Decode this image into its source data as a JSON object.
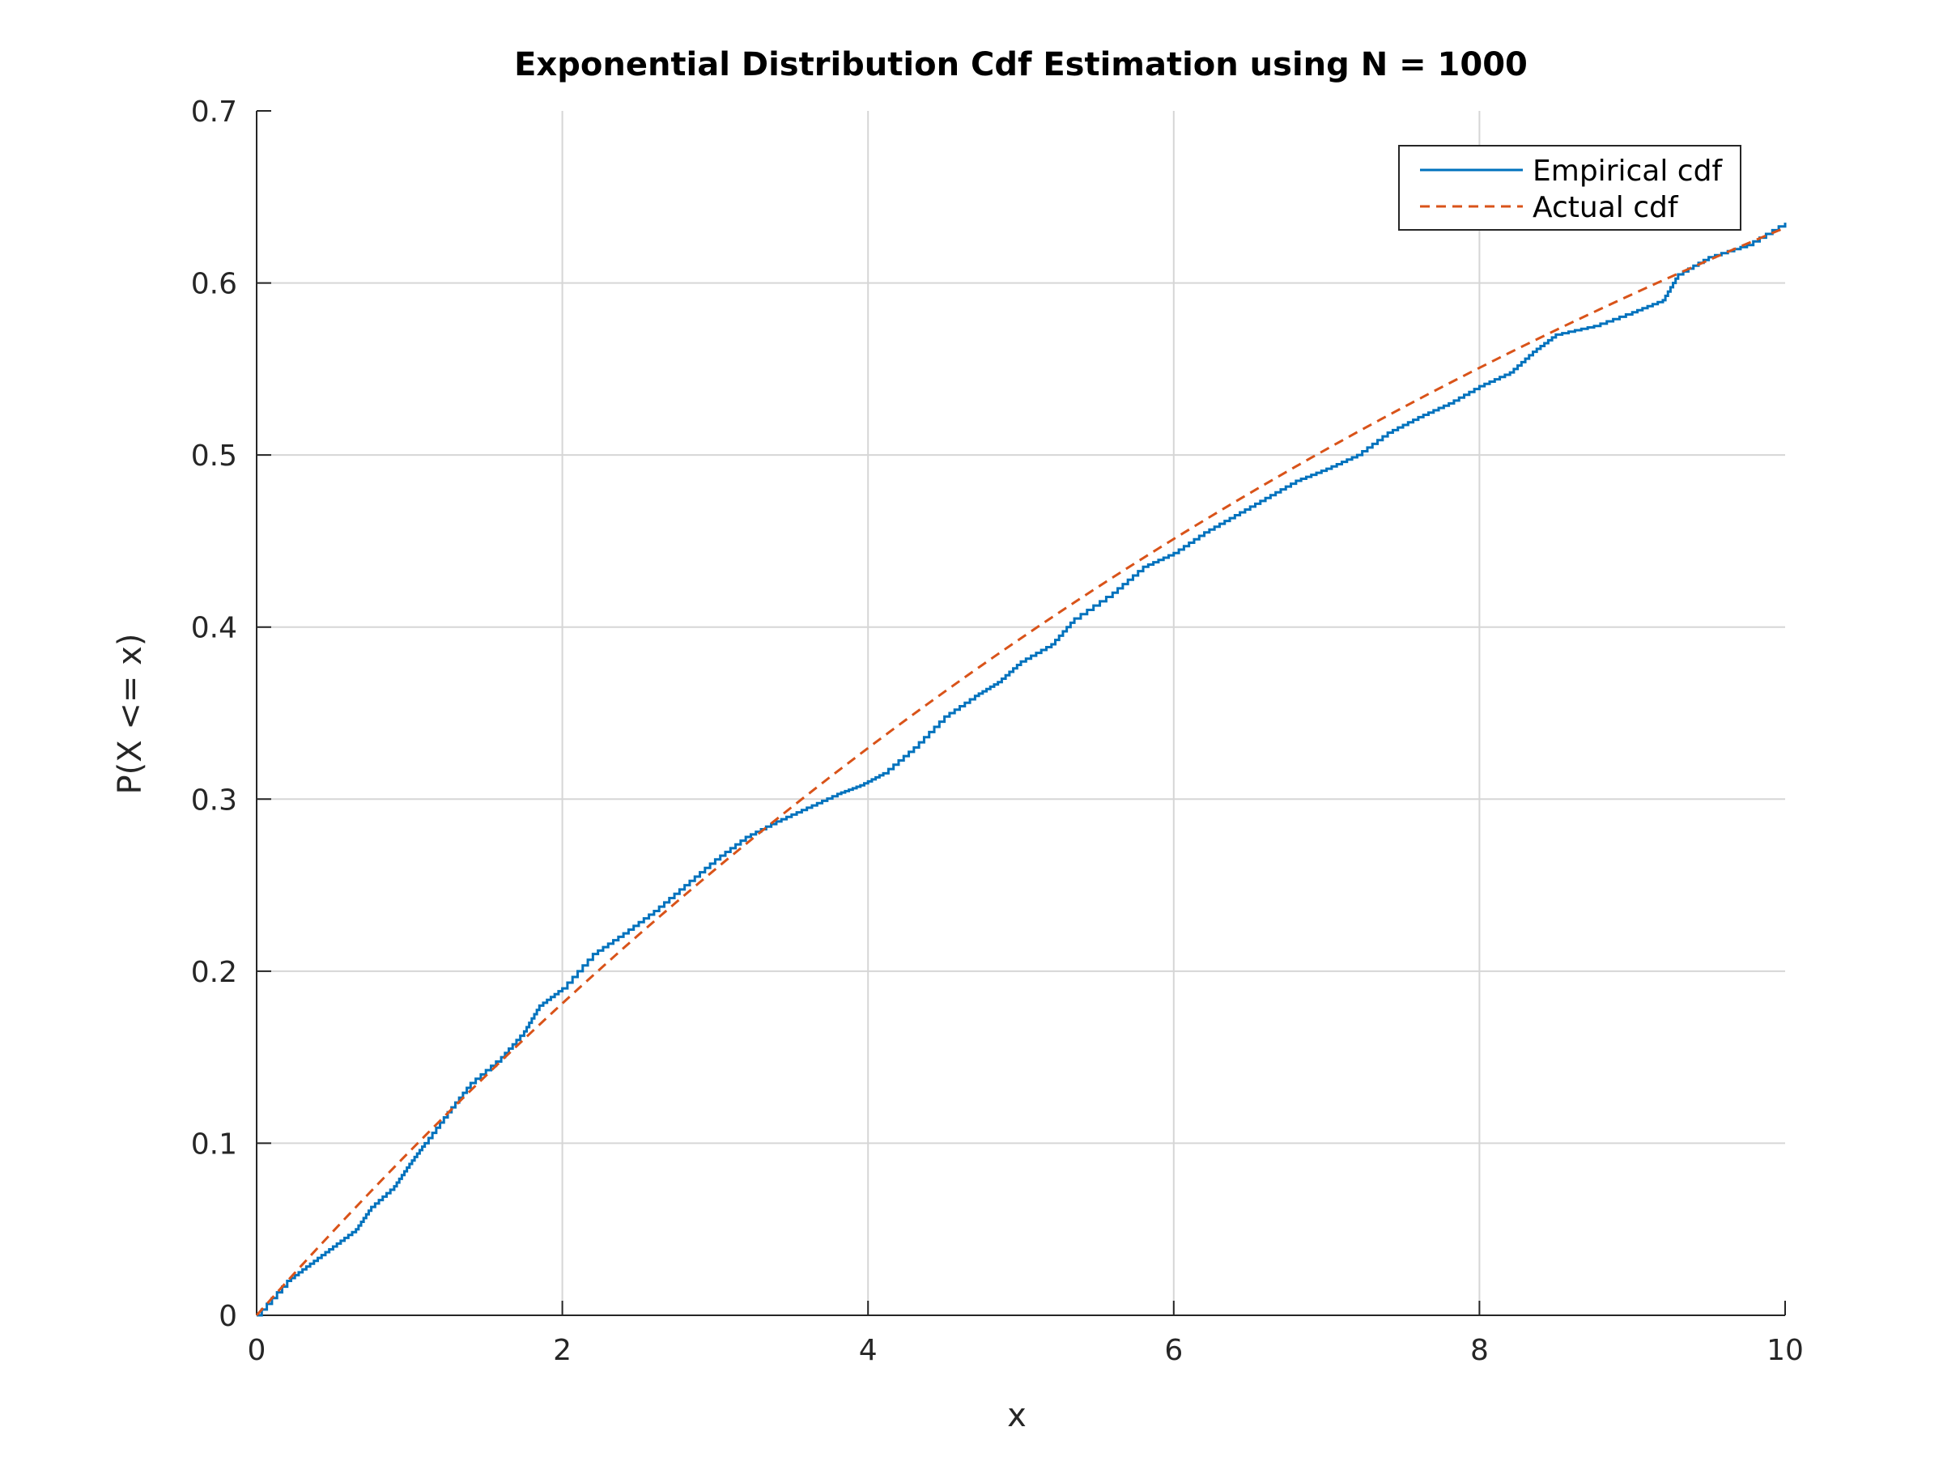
{
  "chart_data": {
    "type": "line",
    "title": "Exponential Distribution Cdf Estimation using N = 1000",
    "xlabel": "x",
    "ylabel": "P(X <= x)",
    "xlim": [
      0,
      10
    ],
    "ylim": [
      0,
      0.7
    ],
    "xticks": [
      0,
      2,
      4,
      6,
      8,
      10
    ],
    "xtick_labels": [
      "0",
      "2",
      "4",
      "6",
      "8",
      "10"
    ],
    "yticks": [
      0,
      0.1,
      0.2,
      0.3,
      0.4,
      0.5,
      0.6,
      0.7
    ],
    "ytick_labels": [
      "0",
      "0.1",
      "0.2",
      "0.3",
      "0.4",
      "0.5",
      "0.6",
      "0.7"
    ],
    "grid": true,
    "legend_position": "top-right",
    "series": [
      {
        "name": "Empirical cdf",
        "color": "#0072BD",
        "style": "solid",
        "x": [
          0,
          0.2,
          0.35,
          0.5,
          0.65,
          0.75,
          0.9,
          1.0,
          1.1,
          1.25,
          1.4,
          1.6,
          1.75,
          1.85,
          2.0,
          2.2,
          2.4,
          2.6,
          2.8,
          3.0,
          3.2,
          3.4,
          3.6,
          3.8,
          3.95,
          4.1,
          4.3,
          4.5,
          4.7,
          4.85,
          5.0,
          5.2,
          5.35,
          5.6,
          5.8,
          6.0,
          6.2,
          6.4,
          6.6,
          6.8,
          7.0,
          7.2,
          7.4,
          7.6,
          7.8,
          8.0,
          8.2,
          8.35,
          8.5,
          8.75,
          9.0,
          9.2,
          9.3,
          9.5,
          9.75,
          10.0
        ],
        "y": [
          0.0,
          0.02,
          0.03,
          0.04,
          0.05,
          0.063,
          0.075,
          0.088,
          0.1,
          0.118,
          0.135,
          0.15,
          0.165,
          0.18,
          0.19,
          0.21,
          0.222,
          0.235,
          0.25,
          0.265,
          0.278,
          0.287,
          0.295,
          0.303,
          0.308,
          0.315,
          0.33,
          0.348,
          0.36,
          0.368,
          0.38,
          0.39,
          0.405,
          0.42,
          0.435,
          0.443,
          0.455,
          0.465,
          0.475,
          0.485,
          0.492,
          0.5,
          0.513,
          0.522,
          0.53,
          0.54,
          0.548,
          0.56,
          0.57,
          0.575,
          0.583,
          0.59,
          0.605,
          0.615,
          0.622,
          0.635
        ]
      },
      {
        "name": "Actual cdf",
        "color": "#D95319",
        "style": "dashed",
        "function": "1 - exp(-x/10)"
      }
    ]
  }
}
